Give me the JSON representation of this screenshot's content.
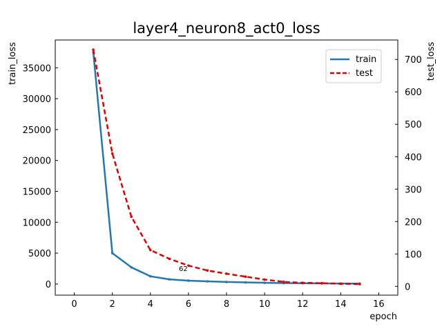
{
  "chart_data": {
    "type": "line",
    "title": "layer4_neuron8_act0_loss",
    "xlabel": "epoch",
    "ylabel_left": "train_loss",
    "ylabel_right": "test_loss",
    "xlim": [
      -1,
      17
    ],
    "ylim_left": [
      -1800,
      39500
    ],
    "ylim_right": [
      -27,
      760
    ],
    "xticks": [
      0,
      2,
      4,
      6,
      8,
      10,
      12,
      14,
      16
    ],
    "yticks_left": [
      0,
      5000,
      10000,
      15000,
      20000,
      25000,
      30000,
      35000
    ],
    "yticks_right": [
      0,
      100,
      200,
      300,
      400,
      500,
      600,
      700
    ],
    "grid": false,
    "legend_position": "top-right",
    "annotation": {
      "text": "62",
      "x": 5.5,
      "y_right": 52
    },
    "series": [
      {
        "name": "train",
        "axis": "left",
        "color": "#1f77b4",
        "style": "solid",
        "x": [
          1,
          2,
          3,
          4,
          5,
          6,
          7,
          8,
          9,
          10,
          11,
          12,
          13,
          14,
          15
        ],
        "values": [
          37500,
          5000,
          2700,
          1250,
          750,
          550,
          430,
          330,
          260,
          200,
          150,
          120,
          100,
          80,
          70
        ]
      },
      {
        "name": "test",
        "axis": "right",
        "color": "#e00000",
        "style": "dashed",
        "x": [
          1,
          2,
          3,
          4,
          5,
          6,
          7,
          8,
          9,
          10,
          11,
          12,
          13,
          14,
          15
        ],
        "values": [
          730,
          410,
          215,
          112,
          85,
          64,
          49,
          39,
          30,
          21,
          14,
          11,
          10,
          8,
          7
        ]
      }
    ]
  }
}
